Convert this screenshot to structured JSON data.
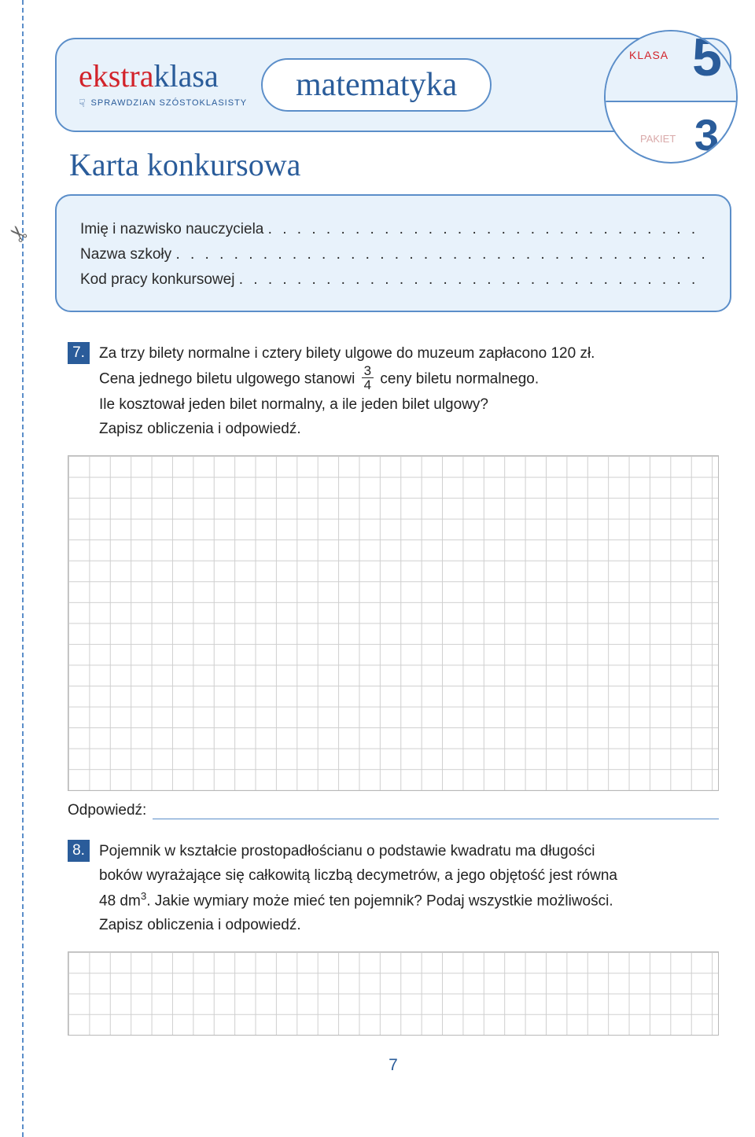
{
  "logo": {
    "part1": "ekstra",
    "part2": "klasa",
    "subtitle": "SPRAWDZIAN SZÓSTOKLASISTY"
  },
  "subject": "matematyka",
  "badge": {
    "klasa_label": "KLASA",
    "klasa_num": "5",
    "pakiet_label": "PAKIET",
    "pakiet_num": "3"
  },
  "card_title": "Karta konkursowa",
  "form": {
    "row1_label": "Imię i nazwisko nauczyciela",
    "row2_label": "Nazwa szkoły",
    "row3_label": "Kod pracy konkursowej",
    "dots1": ". . . . . . . . . . . . . . . . . . . . . . . . . . . . . . . . . . . . . . . . . . .",
    "dots2": ". . . . . . . . . . . . . . . . . . . . . . . . . . . . . . . . . . . . . . . . . . . . . . . . . . . . . . . .",
    "dots3": ". . . . . . . . . . . . . . . . . . . . . . . . . . . . . . . . . . . . . . . . . . . . . . . ."
  },
  "q7": {
    "num": "7.",
    "line1": "Za trzy bilety normalne i cztery bilety ulgowe do muzeum zapłacono 120 zł.",
    "line2a": "Cena jednego biletu ulgowego stanowi",
    "frac_top": "3",
    "frac_bot": "4",
    "line2b": "ceny biletu normalnego.",
    "line3": "Ile kosztował jeden bilet normalny, a ile jeden bilet ulgowy?",
    "line4": "Zapisz obliczenia i odpowiedź.",
    "answer_label": "Odpowiedź:"
  },
  "q8": {
    "num": "8.",
    "line1": "Pojemnik w kształcie prostopadłościanu o podstawie kwadratu ma długości",
    "line2": "boków wyrażające się całkowitą liczbą decymetrów, a jego objętość jest równa",
    "line3a": "48 dm",
    "line3_sup": "3",
    "line3b": ". Jakie wymiary może mieć ten pojemnik? Podaj wszystkie możliwości.",
    "line4": "Zapisz obliczenia i odpowiedź."
  },
  "page_number": "7",
  "colors": {
    "frame_blue": "#5b8ec9",
    "fill_blue": "#e8f2fb",
    "text_blue": "#2a5c9a",
    "red": "#d2232a",
    "grid": "#cfcfcf"
  }
}
